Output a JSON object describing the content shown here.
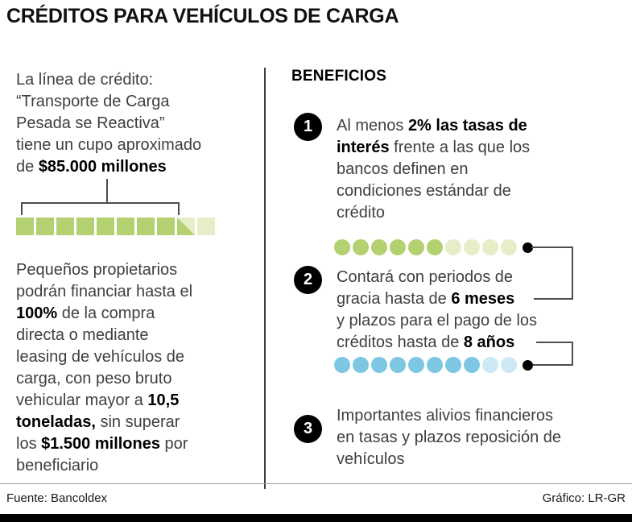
{
  "title": "CRÉDITOS PARA VEHÍCULOS DE CARGA",
  "colors": {
    "green": "#b3d170",
    "green_light": "#e6eec8",
    "blue": "#7ec7e2",
    "blue_light": "#cde9f5",
    "circle_black": "#000000"
  },
  "left_column": {
    "intro": [
      {
        "t": "La línea de crédito:\n“Transporte de Carga\nPesada se Reactiva”\ntiene un cupo aproximado\nde "
      },
      {
        "t": "$85.000 millones",
        "b": true
      }
    ],
    "squares": {
      "full": 8,
      "half": 1,
      "empty": 1
    },
    "detail": [
      {
        "t": "Pequeños propietarios\npodrán financiar hasta el\n"
      },
      {
        "t": "100%",
        "b": true
      },
      {
        "t": " de la compra\ndirecta o mediante\nleasing de vehículos de\ncarga, con peso bruto\nvehicular mayor a "
      },
      {
        "t": "10,5\ntoneladas,",
        "b": true
      },
      {
        "t": " sin superar\nlos "
      },
      {
        "t": "$1.500 millones",
        "b": true
      },
      {
        "t": " por\nbeneficiario"
      }
    ]
  },
  "right_column": {
    "header": "BENEFICIOS",
    "benefits": [
      {
        "number": "1",
        "segments": [
          {
            "t": "Al menos "
          },
          {
            "t": "2% las tasas de\ninterés",
            "b": true
          },
          {
            "t": " frente a las que los\nbancos definen en\ncondiciones estándar de\ncrédito"
          }
        ]
      },
      {
        "number": "2",
        "segments": [
          {
            "t": "Contará con periodos de\ngracia hasta de "
          },
          {
            "t": "6 meses",
            "b": true
          },
          {
            "t": "\ny plazos para el pago de los\ncréditos hasta de "
          },
          {
            "t": "8 años",
            "b": true
          }
        ]
      },
      {
        "number": "3",
        "segments": [
          {
            "t": "Importantes alivios financieros\nen tasas y plazos reposición de\nvehículos"
          }
        ]
      }
    ],
    "green_dots": {
      "filled": 6,
      "light": 4
    },
    "blue_dots": {
      "filled": 8,
      "light": 2
    }
  },
  "footer": {
    "source": "Fuente: Bancoldex",
    "credit": "Gráfico: LR-GR"
  },
  "chart_data": [
    {
      "type": "pictogram",
      "shape": "square",
      "title": "Cupo aproximado línea de crédito Transporte de Carga Pesada se Reactiva",
      "value": 85000,
      "unit": "$ millones (85.000)",
      "total_units": 10,
      "filled_units": 8.5,
      "fill_color": "#b3d170",
      "empty_color": "#e6eec8"
    },
    {
      "type": "pictogram",
      "shape": "dot",
      "title": "Periodos de gracia",
      "value": 6,
      "unit": "meses",
      "total_units": 10,
      "filled_units": 6,
      "fill_color": "#b3d170",
      "empty_color": "#e6eec8"
    },
    {
      "type": "pictogram",
      "shape": "dot",
      "title": "Plazos para el pago de los créditos",
      "value": 8,
      "unit": "años",
      "total_units": 10,
      "filled_units": 8,
      "fill_color": "#7ec7e2",
      "empty_color": "#cde9f5"
    }
  ]
}
